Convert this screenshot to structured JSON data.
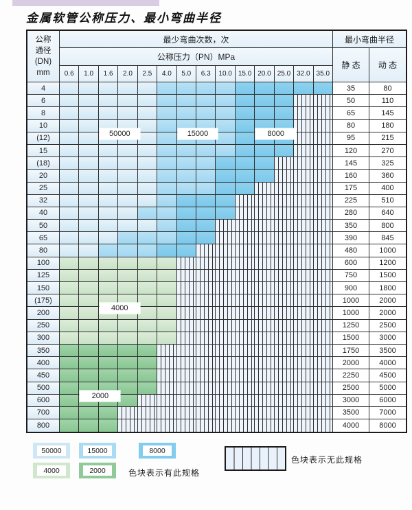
{
  "page": {
    "title": "金属软管公称压力、最小弯曲半径"
  },
  "table": {
    "header": {
      "dn_label_lines": [
        "公称",
        "通径",
        "(DN)",
        "mm"
      ],
      "bend_cycles_label": "最少弯曲次数，次",
      "pressure_label": "公称压力（PN）MPa",
      "radius_label": "最小弯曲半径",
      "static_label": "静 态",
      "dynamic_label": "动 态",
      "pressures": [
        "0.6",
        "1.0",
        "1.6",
        "2.0",
        "2.5",
        "4.0",
        "5.0",
        "6.3",
        "10.0",
        "15.0",
        "20.0",
        "25.0",
        "32.0",
        "35.0"
      ]
    },
    "rows": [
      {
        "dn": "4",
        "static": "35",
        "dynamic": "80",
        "zones": [
          {
            "color": "blue_light",
            "cols": 5
          },
          {
            "color": "blue_mid",
            "cols": 4
          },
          {
            "color": "blue_dark",
            "cols": 5
          }
        ]
      },
      {
        "dn": "6",
        "static": "50",
        "dynamic": "110",
        "zones": [
          {
            "color": "blue_light",
            "cols": 5
          },
          {
            "color": "blue_mid",
            "cols": 4
          },
          {
            "color": "blue_dark",
            "cols": 3
          }
        ]
      },
      {
        "dn": "8",
        "static": "65",
        "dynamic": "145",
        "zones": [
          {
            "color": "blue_light",
            "cols": 5
          },
          {
            "color": "blue_mid",
            "cols": 4
          },
          {
            "color": "blue_dark",
            "cols": 3
          }
        ]
      },
      {
        "dn": "10",
        "static": "80",
        "dynamic": "180",
        "zones": [
          {
            "color": "blue_light",
            "cols": 5
          },
          {
            "color": "blue_mid",
            "cols": 4
          },
          {
            "color": "blue_dark",
            "cols": 3
          }
        ]
      },
      {
        "dn": "(12)",
        "static": "95",
        "dynamic": "215",
        "zones": [
          {
            "color": "blue_light",
            "cols": 5
          },
          {
            "color": "blue_mid",
            "cols": 4
          },
          {
            "color": "blue_dark",
            "cols": 3
          }
        ]
      },
      {
        "dn": "15",
        "static": "120",
        "dynamic": "270",
        "zones": [
          {
            "color": "blue_light",
            "cols": 5
          },
          {
            "color": "blue_mid",
            "cols": 4
          },
          {
            "color": "blue_dark",
            "cols": 3
          }
        ]
      },
      {
        "dn": "(18)",
        "static": "145",
        "dynamic": "325",
        "zones": [
          {
            "color": "blue_light",
            "cols": 5
          },
          {
            "color": "blue_mid",
            "cols": 3
          },
          {
            "color": "blue_dark",
            "cols": 3
          }
        ]
      },
      {
        "dn": "20",
        "static": "160",
        "dynamic": "360",
        "zones": [
          {
            "color": "blue_light",
            "cols": 5
          },
          {
            "color": "blue_mid",
            "cols": 3
          },
          {
            "color": "blue_dark",
            "cols": 3
          }
        ]
      },
      {
        "dn": "25",
        "static": "175",
        "dynamic": "400",
        "zones": [
          {
            "color": "blue_light",
            "cols": 5
          },
          {
            "color": "blue_mid",
            "cols": 3
          },
          {
            "color": "blue_dark",
            "cols": 2
          }
        ]
      },
      {
        "dn": "32",
        "static": "225",
        "dynamic": "510",
        "zones": [
          {
            "color": "blue_light",
            "cols": 5
          },
          {
            "color": "blue_mid",
            "cols": 1
          },
          {
            "color": "blue_dark",
            "cols": 3
          }
        ]
      },
      {
        "dn": "40",
        "static": "280",
        "dynamic": "640",
        "zones": [
          {
            "color": "blue_light",
            "cols": 4
          },
          {
            "color": "blue_mid",
            "cols": 2
          },
          {
            "color": "blue_dark",
            "cols": 3
          }
        ]
      },
      {
        "dn": "50",
        "static": "350",
        "dynamic": "800",
        "zones": [
          {
            "color": "blue_light",
            "cols": 5
          },
          {
            "color": "blue_mid",
            "cols": 1
          },
          {
            "color": "blue_dark",
            "cols": 2
          }
        ]
      },
      {
        "dn": "65",
        "static": "390",
        "dynamic": "845",
        "zones": [
          {
            "color": "blue_light",
            "cols": 3
          },
          {
            "color": "blue_mid",
            "cols": 3
          },
          {
            "color": "blue_dark",
            "cols": 2
          }
        ]
      },
      {
        "dn": "80",
        "static": "480",
        "dynamic": "1000",
        "zones": [
          {
            "color": "blue_light",
            "cols": 2
          },
          {
            "color": "blue_mid",
            "cols": 3
          },
          {
            "color": "blue_dark",
            "cols": 2
          }
        ]
      },
      {
        "dn": "100",
        "static": "600",
        "dynamic": "1200",
        "zones": [
          {
            "color": "green_light",
            "cols": 6
          }
        ]
      },
      {
        "dn": "125",
        "static": "750",
        "dynamic": "1500",
        "zones": [
          {
            "color": "green_light",
            "cols": 6
          }
        ]
      },
      {
        "dn": "150",
        "static": "900",
        "dynamic": "1800",
        "zones": [
          {
            "color": "green_light",
            "cols": 6
          }
        ]
      },
      {
        "dn": "(175)",
        "static": "1000",
        "dynamic": "2000",
        "zones": [
          {
            "color": "green_light",
            "cols": 6
          }
        ]
      },
      {
        "dn": "200",
        "static": "1000",
        "dynamic": "2000",
        "zones": [
          {
            "color": "green_light",
            "cols": 6
          }
        ]
      },
      {
        "dn": "250",
        "static": "1250",
        "dynamic": "2500",
        "zones": [
          {
            "color": "green_light",
            "cols": 6
          }
        ]
      },
      {
        "dn": "300",
        "static": "1500",
        "dynamic": "3000",
        "zones": [
          {
            "color": "green_light",
            "cols": 6
          }
        ]
      },
      {
        "dn": "350",
        "static": "1750",
        "dynamic": "3500",
        "zones": [
          {
            "color": "green_dark",
            "cols": 5
          }
        ]
      },
      {
        "dn": "400",
        "static": "2000",
        "dynamic": "4000",
        "zones": [
          {
            "color": "green_dark",
            "cols": 5
          }
        ]
      },
      {
        "dn": "450",
        "static": "2250",
        "dynamic": "4500",
        "zones": [
          {
            "color": "green_dark",
            "cols": 5
          }
        ]
      },
      {
        "dn": "500",
        "static": "2500",
        "dynamic": "5000",
        "zones": [
          {
            "color": "green_dark",
            "cols": 5
          }
        ]
      },
      {
        "dn": "600",
        "static": "3000",
        "dynamic": "6000",
        "zones": [
          {
            "color": "green_dark",
            "cols": 4
          }
        ]
      },
      {
        "dn": "700",
        "static": "3500",
        "dynamic": "7000",
        "zones": [
          {
            "color": "green_dark",
            "cols": 3
          }
        ]
      },
      {
        "dn": "800",
        "static": "4000",
        "dynamic": "8000",
        "zones": [
          {
            "color": "green_dark",
            "cols": 3
          }
        ]
      }
    ],
    "cycle_labels": [
      {
        "text": "50000",
        "after_row": 4,
        "col_start": 3,
        "col_end": 4
      },
      {
        "text": "15000",
        "after_row": 4,
        "col_start": 7,
        "col_end": 8
      },
      {
        "text": "8000",
        "after_row": 4,
        "col_start": 11,
        "col_end": 12
      },
      {
        "text": "4000",
        "after_row": 18,
        "col_start": 3,
        "col_end": 4
      },
      {
        "text": "2000",
        "after_row": 25,
        "col_start": 2,
        "col_end": 3
      }
    ]
  },
  "legend": {
    "swatches": [
      {
        "value": "50000",
        "color": "blue_light"
      },
      {
        "value": "15000",
        "color": "blue_mid"
      },
      {
        "value": "8000",
        "color": "blue_dark"
      },
      {
        "value": "4000",
        "color": "green_light"
      },
      {
        "value": "2000",
        "color": "green_dark"
      }
    ],
    "has_spec_text": "色块表示有此规格",
    "no_spec_text": "色块表示无此规格"
  },
  "colors": {
    "blue_light": "#d7eaf6",
    "blue_mid": "#a9dcf2",
    "blue_dark": "#82ccee",
    "green_light": "#d0e6cd",
    "green_dark": "#8fca98",
    "hatch_bg": "#eef4fb",
    "grid_line": "#2e2e2e"
  }
}
